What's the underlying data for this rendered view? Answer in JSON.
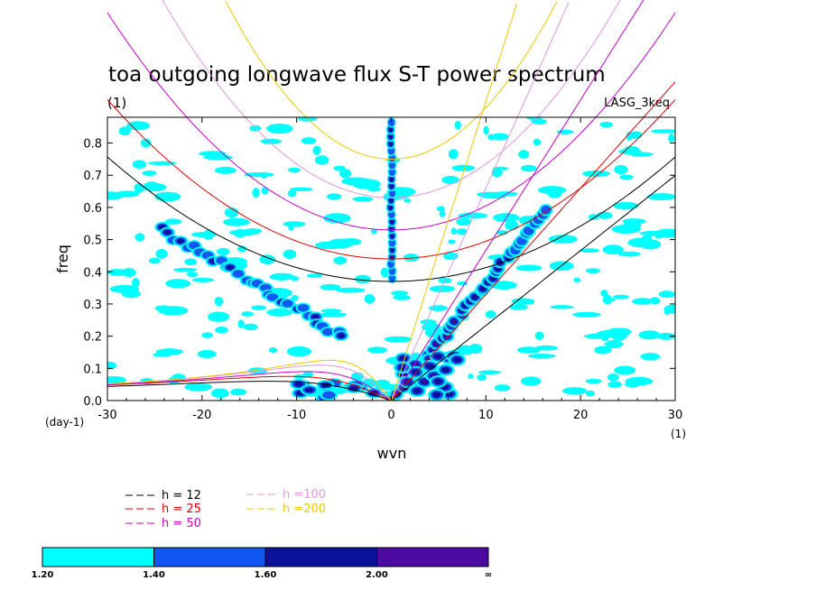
{
  "chart_data": {
    "type": "heatmap",
    "title": "toa outgoing longwave flux S-T power spectrum",
    "subtitle": "(1)",
    "model_label": "LASG_3keq",
    "xlabel": "wvn",
    "ylabel": "freq",
    "x_unit": "(1)",
    "y_unit": "(day-1)",
    "xlim": [
      -30,
      30
    ],
    "ylim": [
      0,
      0.88
    ],
    "xticks": [
      -30,
      -20,
      -10,
      0,
      10,
      20,
      30
    ],
    "yticks": [
      0.0,
      0.1,
      0.2,
      0.3,
      0.4,
      0.5,
      0.6,
      0.7,
      0.8
    ],
    "xtick_labels": [
      "-30",
      "-20",
      "-10",
      "0",
      "10",
      "20",
      "30"
    ],
    "ytick_labels": [
      "0.0",
      "0.1",
      "0.2",
      "0.3",
      "0.4",
      "0.5",
      "0.6",
      "0.7",
      "0.8"
    ],
    "colorbar": {
      "levels": [
        "1.20",
        "1.40",
        "1.60",
        "2.00",
        "∞"
      ],
      "colors": [
        "#00ffff",
        "#0f57f0",
        "#0c119c",
        "#4d0aa3"
      ]
    },
    "legend": [
      {
        "label": "h = 12",
        "color": "#000000"
      },
      {
        "label": "h = 25",
        "color": "#e10000"
      },
      {
        "label": "h = 50",
        "color": "#c800c8"
      },
      {
        "label": "h =100",
        "color": "#e098e0"
      },
      {
        "label": "h =200",
        "color": "#f0c800"
      }
    ],
    "dispersion_curves": [
      {
        "h": 12,
        "color": "#000000",
        "er_symmetric_min": 0.37,
        "er_symmetric_edge": 0.76,
        "kelvin_at_k30": 0.7,
        "er_at_k30": 0.81,
        "rossby_min_at_edge": 0.05
      },
      {
        "h": 25,
        "color": "#e10000",
        "er_symmetric_min": 0.44,
        "kelvin_at_k30": 1.0,
        "rossby_peak": 0.075
      },
      {
        "h": 50,
        "color": "#c800c8",
        "er_symmetric_min": 0.53,
        "rossby_peak": 0.09
      },
      {
        "h": 100,
        "color": "#e098e0",
        "er_symmetric_min": 0.63,
        "rossby_peak": 0.11
      },
      {
        "h": 200,
        "color": "#f0c800",
        "er_symmetric_min": 0.75,
        "rossby_peak": 0.125
      }
    ],
    "power_features": [
      {
        "description": "vertical band at wavenumber 0",
        "x": [
          0,
          0
        ],
        "y": [
          0.37,
          0.88
        ],
        "level": "1.60"
      },
      {
        "description": "eastward Kelvin ridge",
        "x": [
          0,
          16
        ],
        "y": [
          0.0,
          0.6
        ],
        "level": "2.00"
      },
      {
        "description": "westward Rossby ridge",
        "x": [
          -24,
          -5
        ],
        "y": [
          0.55,
          0.2
        ],
        "level": "1.40"
      },
      {
        "description": "low-frequency westward band",
        "x": [
          -12,
          -1
        ],
        "y": [
          0.0,
          0.05
        ],
        "level": "1.40"
      }
    ],
    "grid": false,
    "legend_placement": "bottom-left"
  }
}
